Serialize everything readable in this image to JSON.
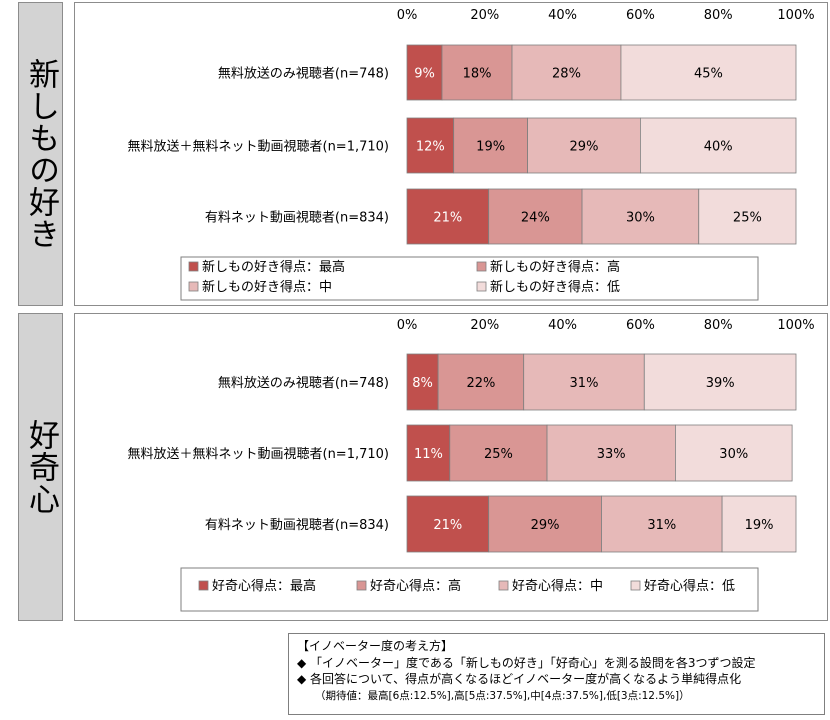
{
  "sections": [
    {
      "side_label": "新しもの好き",
      "chart_data": {
        "type": "bar",
        "orientation": "horizontal",
        "stacked": "percent",
        "categories": [
          "無料放送のみ視聴者(n=748)",
          "無料放送＋無料ネット動画視聴者(n=1,710)",
          "有料ネット動画視聴者(n=834)"
        ],
        "series": [
          {
            "name": "新しもの好き得点：最高",
            "values": [
              9,
              12,
              21
            ]
          },
          {
            "name": "新しもの好き得点：高",
            "values": [
              18,
              19,
              24
            ]
          },
          {
            "name": "新しもの好き得点：中",
            "values": [
              28,
              29,
              30
            ]
          },
          {
            "name": "新しもの好き得点：低",
            "values": [
              45,
              40,
              25
            ]
          }
        ],
        "data_labels": [
          [
            "9%",
            "18%",
            "28%",
            "45%"
          ],
          [
            "12%",
            "19%",
            "29%",
            "40%"
          ],
          [
            "21%",
            "24%",
            "30%",
            "25%"
          ]
        ],
        "xticks": [
          "0%",
          "20%",
          "40%",
          "60%",
          "80%",
          "100%"
        ],
        "xlim": [
          0,
          100
        ],
        "legend_position": "bottom",
        "legend_layout": "two-columns",
        "grid": false
      }
    },
    {
      "side_label": "好奇心",
      "chart_data": {
        "type": "bar",
        "orientation": "horizontal",
        "stacked": "percent",
        "categories": [
          "無料放送のみ視聴者(n=748)",
          "無料放送＋無料ネット動画視聴者(n=1,710)",
          "有料ネット動画視聴者(n=834)"
        ],
        "series": [
          {
            "name": "好奇心得点：最高",
            "values": [
              8,
              11,
              21
            ]
          },
          {
            "name": "好奇心得点：高",
            "values": [
              22,
              25,
              29
            ]
          },
          {
            "name": "好奇心得点：中",
            "values": [
              31,
              33,
              31
            ]
          },
          {
            "name": "好奇心得点：低",
            "values": [
              39,
              30,
              19
            ]
          }
        ],
        "data_labels": [
          [
            "8%",
            "22%",
            "31%",
            "39%"
          ],
          [
            "11%",
            "25%",
            "33%",
            "30%"
          ],
          [
            "21%",
            "29%",
            "31%",
            "19%"
          ]
        ],
        "xticks": [
          "0%",
          "20%",
          "40%",
          "60%",
          "80%",
          "100%"
        ],
        "xlim": [
          0,
          100
        ],
        "legend_position": "bottom",
        "legend_layout": "one-row",
        "grid": false
      }
    }
  ],
  "colors": {
    "series": [
      "#c0504d",
      "#d99694",
      "#e6b9b8",
      "#f2dcdb"
    ],
    "bar_border": "#7f7f7f",
    "label_light": "#ffffff",
    "label_dark": "#000000"
  },
  "note": {
    "title": "【イノベーター度の考え方】",
    "bullets": [
      "◆ 「イノベーター」度である「新しもの好き」「好奇心」を測る設問を各3つずつ設定",
      "◆ 各回答について、得点が高くなるほどイノベーター度が高くなるよう単純得点化"
    ],
    "expected": "（期待値：最高[6点:12.5%],高[5点:37.5%],中[4点:37.5%],低[3点:12.5%]）"
  }
}
